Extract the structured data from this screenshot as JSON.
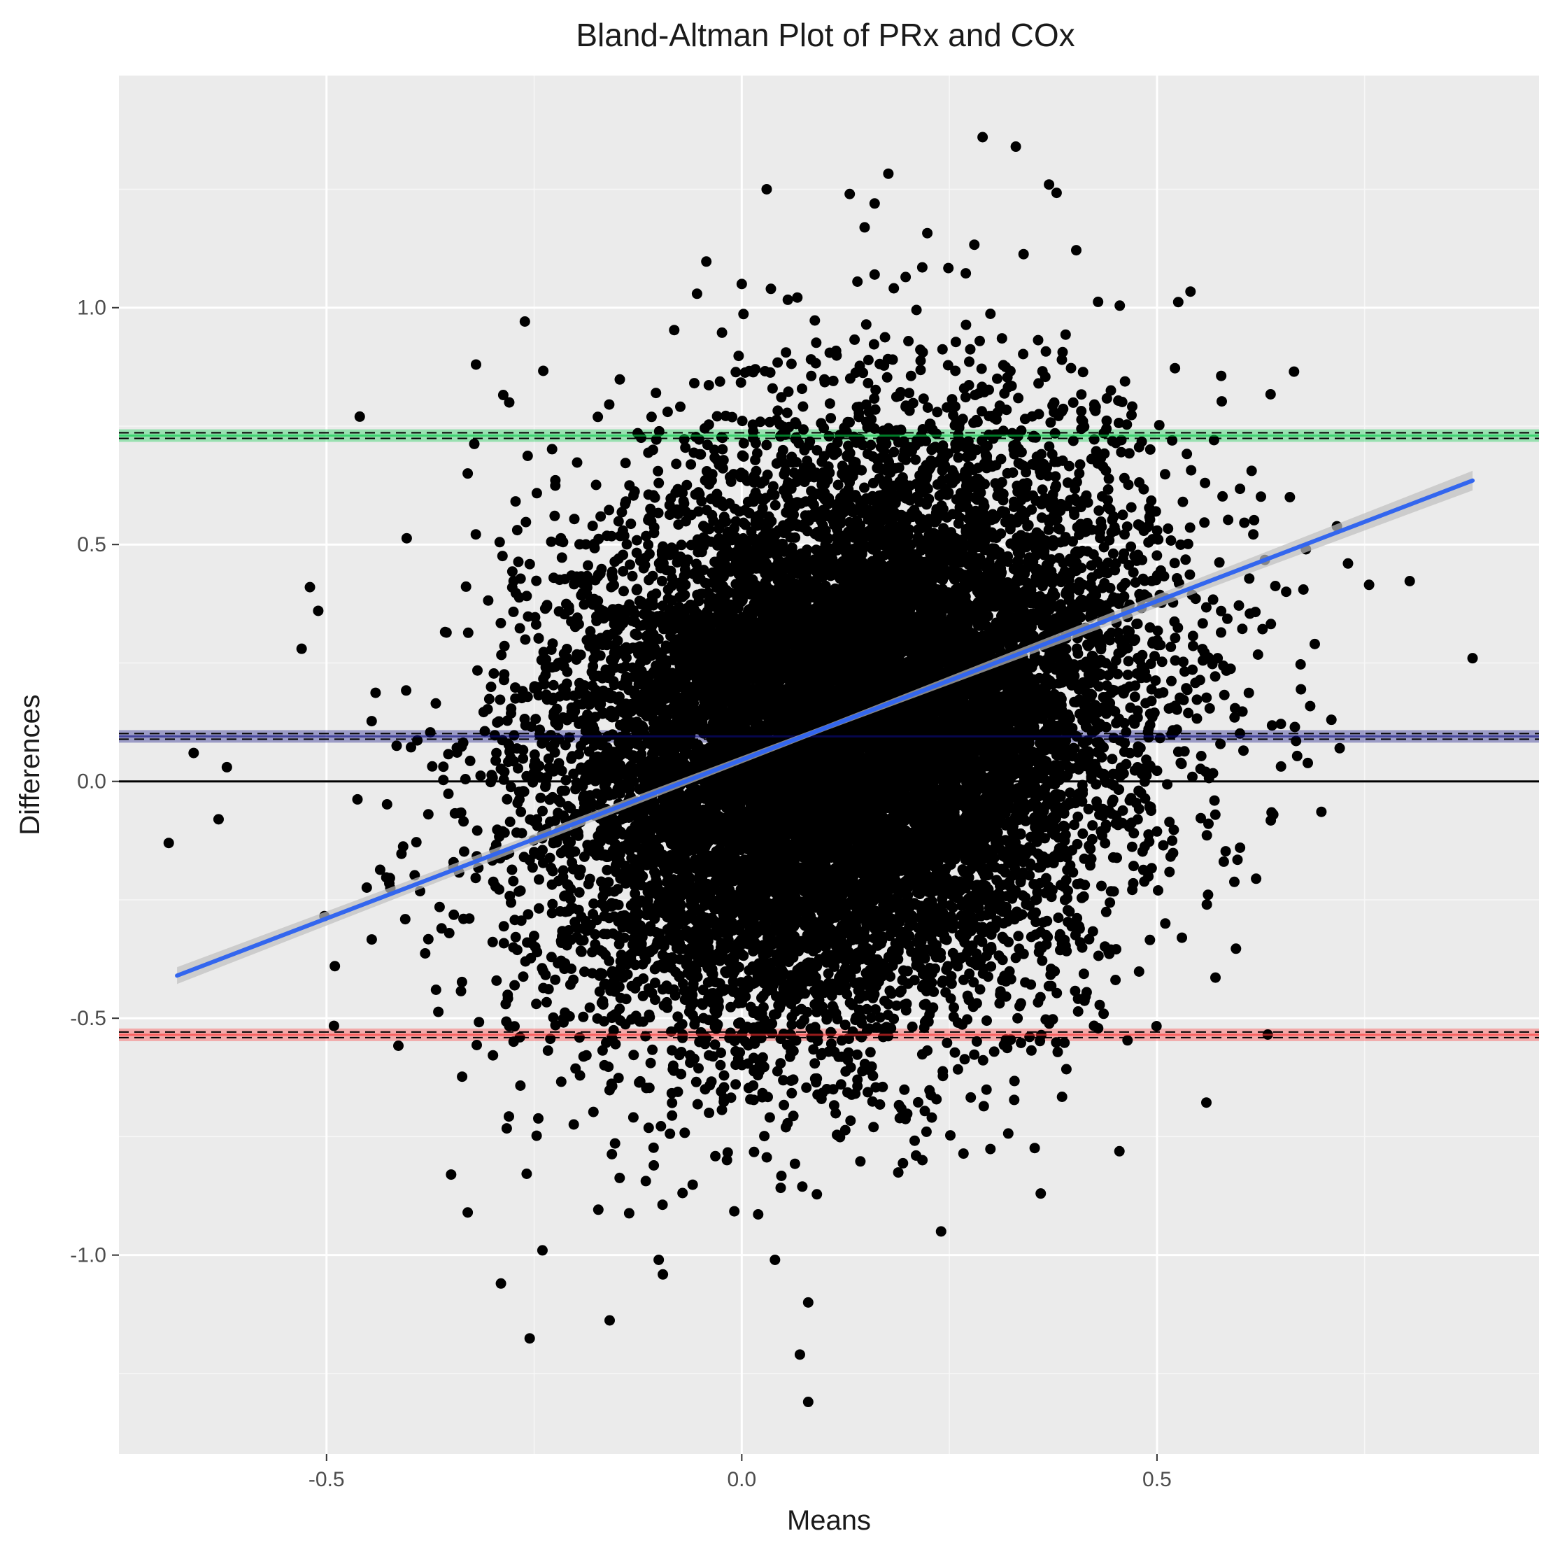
{
  "chart_data": {
    "type": "scatter",
    "title": "Bland-Altman Plot of PRx and COx",
    "xlabel": "Means",
    "ylabel": "Differences",
    "xlim": [
      -0.75,
      0.96
    ],
    "ylim": [
      -1.42,
      1.49
    ],
    "x_ticks": [
      -0.5,
      0.0,
      0.5
    ],
    "x_tick_labels": [
      "-0.5",
      "0.0",
      "0.5"
    ],
    "y_ticks": [
      -1.0,
      -0.5,
      0.0,
      0.5,
      1.0
    ],
    "y_tick_labels": [
      "-1.0",
      "-0.5",
      "0.0",
      "0.5",
      "1.0"
    ],
    "grid": true,
    "background": "#ebebeb",
    "point_color": "#000000",
    "cloud": {
      "center_x": 0.12,
      "center_y": 0.1,
      "sd_x": 0.17,
      "sd_y": 0.3,
      "n": 14000
    },
    "reference_lines": [
      {
        "name": "upper limit of agreement",
        "y": 0.73,
        "color": "#00cc44",
        "style": "dashed"
      },
      {
        "name": "mean difference",
        "y": 0.095,
        "color": "#0a0a80",
        "style": "dashed"
      },
      {
        "name": "zero",
        "y": 0.0,
        "color": "#000000",
        "style": "solid"
      },
      {
        "name": "lower limit of agreement",
        "y": -0.535,
        "color": "#ff3030",
        "style": "dashed"
      }
    ],
    "regression_line": {
      "x": [
        -0.68,
        0.88
      ],
      "y": [
        -0.41,
        0.635
      ],
      "color": "#3366ee"
    },
    "outliers": [
      [
        -0.69,
        -0.13
      ],
      [
        -0.66,
        0.06
      ],
      [
        -0.62,
        0.03
      ],
      [
        -0.63,
        -0.08
      ],
      [
        -0.52,
        0.41
      ],
      [
        -0.51,
        0.36
      ],
      [
        -0.53,
        0.28
      ],
      [
        -0.49,
        -0.39
      ],
      [
        -0.46,
        0.77
      ],
      [
        -0.32,
        0.88
      ],
      [
        -0.28,
        0.8
      ],
      [
        -0.33,
        0.65
      ],
      [
        -0.29,
        -1.06
      ],
      [
        -0.24,
        -0.99
      ],
      [
        -0.33,
        -0.91
      ],
      [
        -0.35,
        -0.83
      ],
      [
        0.03,
        1.25
      ],
      [
        0.13,
        1.24
      ],
      [
        0.16,
        1.22
      ],
      [
        0.29,
        1.36
      ],
      [
        0.33,
        1.34
      ],
      [
        0.37,
        1.26
      ],
      [
        0.0,
        1.05
      ],
      [
        0.16,
        1.07
      ],
      [
        0.07,
        -1.21
      ],
      [
        0.08,
        -1.31
      ],
      [
        0.08,
        -1.1
      ],
      [
        0.04,
        -1.01
      ],
      [
        -0.1,
        -1.01
      ],
      [
        0.24,
        -0.95
      ],
      [
        0.36,
        -0.87
      ],
      [
        0.88,
        0.26
      ],
      [
        0.71,
        0.13
      ],
      [
        0.72,
        0.07
      ],
      [
        0.73,
        0.46
      ],
      [
        0.69,
        0.29
      ],
      [
        0.66,
        0.6
      ],
      [
        0.64,
        -0.07
      ],
      [
        0.6,
        -0.14
      ],
      [
        0.56,
        -0.26
      ],
      [
        0.53,
        -0.33
      ],
      [
        0.51,
        -0.3
      ]
    ]
  }
}
